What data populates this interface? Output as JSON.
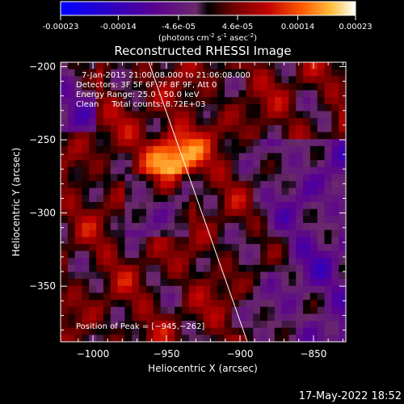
{
  "colorbar": {
    "tick_labels": [
      "-0.00023",
      "-0.00014",
      "-4.6e-05",
      "4.6e-05",
      "0.00014",
      "0.00023"
    ],
    "tick_values": [
      -0.00023,
      -0.00014,
      -4.6e-05,
      4.6e-05,
      0.00014,
      0.00023
    ],
    "range": [
      -0.00023,
      0.00023
    ],
    "units_prefix": "(photons cm",
    "units_exp1": "-2",
    "units_mid1": " s",
    "units_exp2": "-1",
    "units_mid2": " asec",
    "units_exp3": "-2",
    "units_suffix": ")"
  },
  "chart_data": {
    "type": "heatmap",
    "title": "Reconstructed RHESSI Image",
    "xlabel": "Heliocentric X (arcsec)",
    "ylabel": "Heliocentric Y (arcsec)",
    "xlim": [
      -1022,
      -828
    ],
    "ylim": [
      -388,
      -197
    ],
    "x_ticks": [
      -1000,
      -950,
      -900,
      -850
    ],
    "y_ticks": [
      -350,
      -300,
      -250,
      -200
    ],
    "x_tick_labels": [
      "−1000",
      "−950",
      "−900",
      "−850"
    ],
    "y_tick_labels": [
      "−350",
      "−300",
      "−250",
      "−200"
    ],
    "annotations": [
      "7-Jan-2015 21:00:08.000 to 21:06:08.000",
      "Detectors: 3F 5F 6F 7F 8F 9F, Att 0",
      "Energy Range: 25.0 - 50.0 keV",
      "Clean     Total counts: 8.72E+03"
    ],
    "peak_label": "Position of Peak = [−945,−262]",
    "peak": [
      -945,
      -262
    ],
    "limb_line": [
      [
        -962,
        -197
      ],
      [
        -895,
        -388
      ]
    ]
  },
  "footer": {
    "timestamp": "17-May-2022 18:52"
  },
  "colors": {
    "background": "#000000",
    "axes": "#ffffff",
    "limb": "#ffffff"
  }
}
